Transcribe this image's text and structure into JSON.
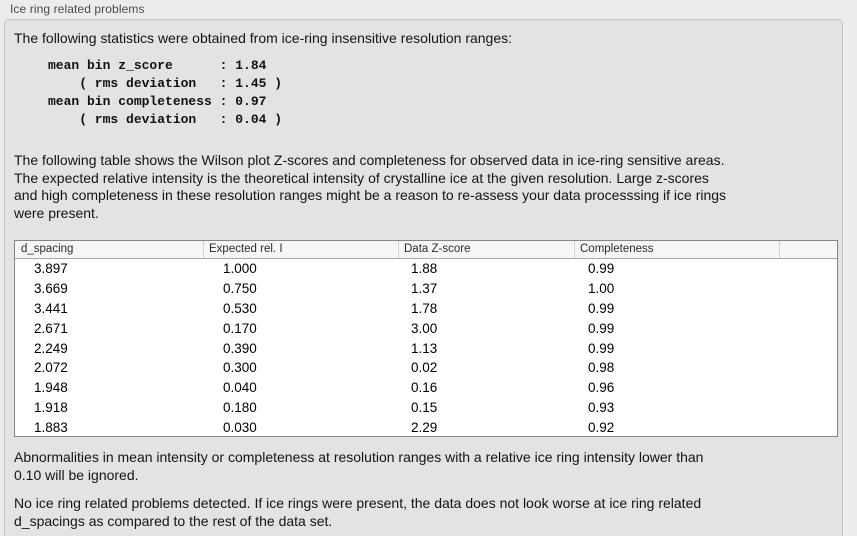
{
  "panel": {
    "title": "Ice ring related problems"
  },
  "sections": {
    "intro": "The following statistics were obtained from ice-ring insensitive resolution ranges:",
    "stats_block": "mean bin z_score      : 1.84\n    ( rms deviation   : 1.45 )\nmean bin completeness : 0.97\n    ( rms deviation   : 0.04 )",
    "table_description": "The following table shows the Wilson plot Z-scores and completeness for observed data in ice-ring sensitive areas.\nThe expected relative intensity is the theoretical intensity of crystalline ice at the given resolution. Large z-scores\nand high completeness in these resolution ranges might be a reason to re-assess your data processsing if ice rings\nwere present.",
    "ignore_note": "Abnormalities in mean intensity or completeness at resolution ranges with a relative ice ring intensity lower than\n0.10 will be ignored.",
    "conclusion": "No ice ring related problems detected. If ice rings were present, the data does not look worse at ice ring related\nd_spacings as compared to the rest of the data set."
  },
  "table": {
    "columns": [
      "d_spacing",
      "Expected rel. I",
      "Data Z-score",
      "Completeness",
      ""
    ],
    "rows": [
      [
        "3.897",
        "1.000",
        "1.88",
        "0.99"
      ],
      [
        "3.669",
        "0.750",
        "1.37",
        "1.00"
      ],
      [
        "3.441",
        "0.530",
        "1.78",
        "0.99"
      ],
      [
        "2.671",
        "0.170",
        "3.00",
        "0.99"
      ],
      [
        "2.249",
        "0.390",
        "1.13",
        "0.99"
      ],
      [
        "2.072",
        "0.300",
        "0.02",
        "0.98"
      ],
      [
        "1.948",
        "0.040",
        "0.16",
        "0.96"
      ],
      [
        "1.918",
        "0.180",
        "0.15",
        "0.93"
      ],
      [
        "1.883",
        "0.030",
        "2.29",
        "0.92"
      ]
    ]
  },
  "colors": {
    "page_bg": "#ececec",
    "panel_bg": "#e3e3e3",
    "table_header_bg": "#f6f6f6",
    "table_body_bg": "#ffffff",
    "table_border": "#858585"
  }
}
